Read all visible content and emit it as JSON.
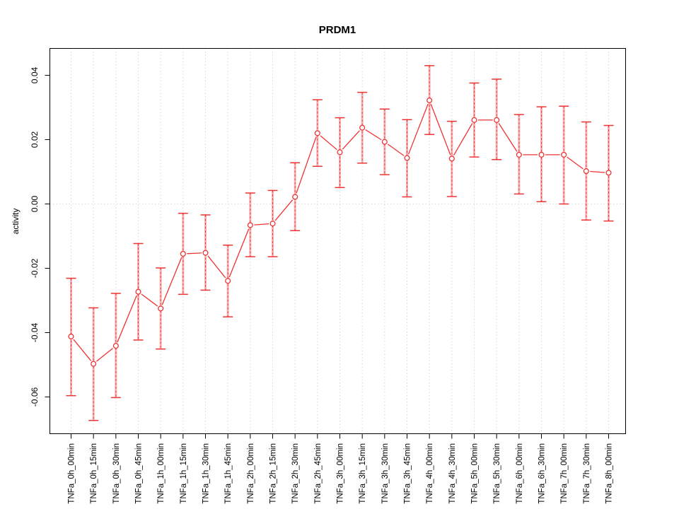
{
  "chart_data": {
    "type": "line",
    "title": "PRDM1",
    "xlabel": "",
    "ylabel": "activity",
    "legend": "none",
    "grid": "vertical dotted gridline at every category; horizontal dotted line at y=0",
    "marker": "open-circle",
    "error_bars": true,
    "ylim": [
      -0.071,
      0.048
    ],
    "yticks": [
      -0.06,
      -0.04,
      -0.02,
      0.0,
      0.02,
      0.04
    ],
    "ytick_labels": [
      "-0.06",
      "-0.04",
      "-0.02",
      "0.00",
      "0.02",
      "0.04"
    ],
    "categories": [
      "TNFa_0h_00min",
      "TNFa_0h_15min",
      "TNFa_0h_30min",
      "TNFa_0h_45min",
      "TNFa_1h_00min",
      "TNFa_1h_15min",
      "TNFa_1h_30min",
      "TNFa_1h_45min",
      "TNFa_2h_00min",
      "TNFa_2h_15min",
      "TNFa_2h_30min",
      "TNFa_2h_45min",
      "TNFa_3h_00min",
      "TNFa_3h_15min",
      "TNFa_3h_30min",
      "TNFa_3h_45min",
      "TNFa_4h_00min",
      "TNFa_4h_30min",
      "TNFa_5h_00min",
      "TNFa_5h_30min",
      "TNFa_6h_00min",
      "TNFa_6h_30min",
      "TNFa_7h_00min",
      "TNFa_7h_30min",
      "TNFa_8h_00min"
    ],
    "series": [
      {
        "name": "activity",
        "values": [
          -0.0412,
          -0.0497,
          -0.0441,
          -0.0273,
          -0.0325,
          -0.0155,
          -0.0152,
          -0.0239,
          -0.0066,
          -0.0061,
          0.0022,
          0.022,
          0.0161,
          0.0237,
          0.0193,
          0.0143,
          0.0322,
          0.0141,
          0.0261,
          0.0261,
          0.0153,
          0.0153,
          0.0153,
          0.0102,
          0.0097
        ],
        "lower": [
          -0.0596,
          -0.0673,
          -0.0602,
          -0.0423,
          -0.0451,
          -0.0281,
          -0.0268,
          -0.0351,
          -0.0164,
          -0.0164,
          -0.0083,
          0.0117,
          0.0051,
          0.0127,
          0.0091,
          0.0022,
          0.0216,
          0.0023,
          0.0146,
          0.0138,
          0.0031,
          0.0007,
          0.0,
          -0.005,
          -0.0053
        ],
        "upper": [
          -0.0231,
          -0.0323,
          -0.0278,
          -0.0123,
          -0.0199,
          -0.0029,
          -0.0034,
          -0.0128,
          0.0034,
          0.0042,
          0.0128,
          0.0324,
          0.0268,
          0.0347,
          0.0295,
          0.0262,
          0.043,
          0.0257,
          0.0376,
          0.0388,
          0.0278,
          0.0302,
          0.0304,
          0.0255,
          0.0244
        ]
      }
    ],
    "colors": {
      "line": "#ee3333",
      "error_bar_fill": "#f6a8a8",
      "grid": "#d9d9d9",
      "frame": "#000000",
      "text": "#000000",
      "background": "#ffffff"
    }
  }
}
